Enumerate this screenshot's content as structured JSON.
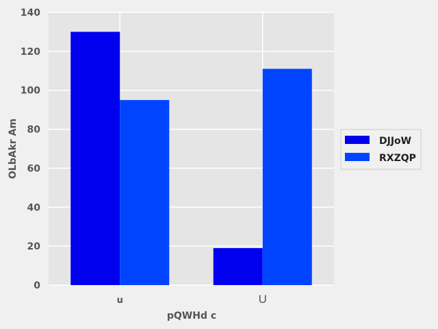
{
  "chart_data": {
    "type": "bar",
    "title": "",
    "categories": [
      "u",
      "U"
    ],
    "series": [
      {
        "name": "DJJoW",
        "values": [
          130,
          19
        ],
        "color": "#0000ee"
      },
      {
        "name": "RXZQP",
        "values": [
          95,
          111
        ],
        "color": "#0044ff"
      }
    ],
    "xlabel": "pQWHd c",
    "ylabel": "OLbAkr Am",
    "ylim": [
      0,
      140
    ],
    "yticks": [
      0,
      20,
      40,
      60,
      80,
      100,
      120,
      140
    ],
    "grid": true,
    "legend_position": "right"
  },
  "colors": {
    "plot_background": "#e5e5e5",
    "figure_background": "#f0f0f0",
    "grid": "#ffffff"
  }
}
